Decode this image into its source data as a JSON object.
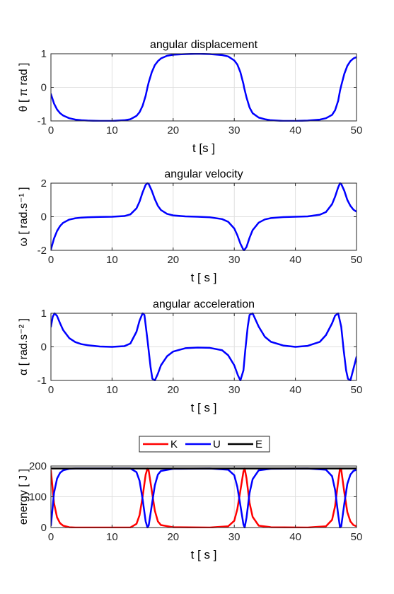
{
  "chart_data": [
    {
      "type": "line",
      "title": "angular displacement",
      "xlabel": "t   [s ]",
      "ylabel": "θ  [ π rad ]",
      "xlim": [
        0,
        50
      ],
      "ylim": [
        -1,
        1
      ],
      "xticks": [
        0,
        10,
        20,
        30,
        40,
        50
      ],
      "yticks": [
        -1,
        0,
        1
      ],
      "xtick_labels": [
        "0",
        "10",
        "20",
        "30",
        "40",
        "50"
      ],
      "ytick_labels": [
        "-1",
        "0",
        "1"
      ],
      "grid": true,
      "series": [
        {
          "color": "#0000ff",
          "x": [
            0,
            0.5,
            1,
            1.5,
            2,
            3,
            4,
            5,
            6,
            8,
            10,
            12,
            13,
            14,
            14.5,
            15,
            15.5,
            15.8,
            16,
            16.5,
            17,
            17.5,
            18,
            19,
            20,
            22,
            24,
            26,
            28,
            29,
            30,
            30.5,
            31,
            31.5,
            31.6,
            32,
            32.5,
            33,
            34,
            35,
            36,
            38,
            40,
            42,
            44,
            45,
            46,
            46.5,
            47,
            47.3,
            47.5,
            48,
            48.5,
            49,
            49.5,
            50
          ],
          "y": [
            -0.2,
            -0.48,
            -0.66,
            -0.77,
            -0.84,
            -0.92,
            -0.96,
            -0.98,
            -0.99,
            -1.0,
            -1.0,
            -0.98,
            -0.95,
            -0.85,
            -0.74,
            -0.55,
            -0.25,
            0.0,
            0.15,
            0.45,
            0.66,
            0.78,
            0.86,
            0.94,
            0.97,
            0.99,
            1.0,
            0.99,
            0.96,
            0.92,
            0.8,
            0.68,
            0.45,
            0.1,
            0.0,
            -0.3,
            -0.6,
            -0.77,
            -0.9,
            -0.95,
            -0.98,
            -1.0,
            -1.0,
            -0.99,
            -0.96,
            -0.92,
            -0.82,
            -0.68,
            -0.4,
            -0.1,
            0.05,
            0.4,
            0.64,
            0.78,
            0.86,
            0.9
          ]
        }
      ]
    },
    {
      "type": "line",
      "title": "angular velocity",
      "xlabel": "t  [ s ]",
      "ylabel": "ω  [ rad.s⁻¹ ]",
      "xlim": [
        0,
        50
      ],
      "ylim": [
        -2,
        2
      ],
      "xticks": [
        0,
        10,
        20,
        30,
        40,
        50
      ],
      "yticks": [
        -2,
        0,
        2
      ],
      "xtick_labels": [
        "0",
        "10",
        "20",
        "30",
        "40",
        "50"
      ],
      "ytick_labels": [
        "-2",
        "0",
        "2"
      ],
      "grid": true,
      "series": [
        {
          "color": "#0000ff",
          "x": [
            0,
            0.5,
            1,
            1.5,
            2,
            3,
            4,
            5,
            6,
            8,
            10,
            12,
            13,
            14,
            14.5,
            15,
            15.5,
            15.8,
            16,
            16.5,
            17,
            17.5,
            18,
            19,
            20,
            22,
            24,
            26,
            28,
            29,
            30,
            30.5,
            31,
            31.5,
            31.6,
            32,
            32.5,
            33,
            34,
            35,
            36,
            38,
            40,
            42,
            44,
            45,
            46,
            46.5,
            47,
            47.3,
            47.5,
            48,
            48.5,
            49,
            49.5,
            50
          ],
          "y": [
            -1.95,
            -1.3,
            -0.85,
            -0.55,
            -0.36,
            -0.17,
            -0.09,
            -0.05,
            -0.03,
            -0.01,
            0.0,
            0.04,
            0.14,
            0.5,
            0.9,
            1.45,
            1.9,
            2.0,
            1.95,
            1.55,
            1.05,
            0.65,
            0.4,
            0.17,
            0.08,
            0.02,
            0.0,
            -0.03,
            -0.14,
            -0.3,
            -0.7,
            -1.1,
            -1.6,
            -1.97,
            -2.0,
            -1.8,
            -1.25,
            -0.8,
            -0.35,
            -0.16,
            -0.08,
            -0.02,
            0.0,
            0.02,
            0.12,
            0.28,
            0.75,
            1.2,
            1.75,
            2.0,
            1.95,
            1.55,
            1.0,
            0.65,
            0.42,
            0.3
          ]
        }
      ]
    },
    {
      "type": "line",
      "title": "angular acceleration",
      "xlabel": "t  [ s ]",
      "ylabel": "α  [ rad.s⁻² ]",
      "xlim": [
        0,
        50
      ],
      "ylim": [
        -1,
        1
      ],
      "xticks": [
        0,
        10,
        20,
        30,
        40,
        50
      ],
      "yticks": [
        -1,
        0,
        1
      ],
      "xtick_labels": [
        "0",
        "10",
        "20",
        "30",
        "40",
        "50"
      ],
      "ytick_labels": [
        "-1",
        "0",
        "1"
      ],
      "grid": true,
      "series": [
        {
          "color": "#0000ff",
          "x": [
            0,
            0.3,
            0.6,
            1,
            1.5,
            2,
            3,
            4,
            5,
            6,
            8,
            10,
            12,
            13,
            14,
            14.5,
            15,
            15.3,
            15.8,
            16.3,
            16.6,
            17,
            17.5,
            18,
            19,
            20,
            22,
            24,
            26,
            28,
            29,
            30,
            30.6,
            31,
            31.5,
            31.8,
            32.2,
            32.5,
            33,
            34,
            35,
            36,
            38,
            40,
            42,
            44,
            45,
            46,
            46.5,
            47,
            47.5,
            47.9,
            48.3,
            48.6,
            49,
            49.5,
            50
          ],
          "y": [
            0.6,
            0.9,
            1.0,
            0.92,
            0.7,
            0.5,
            0.26,
            0.14,
            0.08,
            0.05,
            0.01,
            0.0,
            0.02,
            0.1,
            0.45,
            0.78,
            1.0,
            0.95,
            0.2,
            -0.6,
            -0.95,
            -1.0,
            -0.8,
            -0.55,
            -0.28,
            -0.14,
            -0.04,
            -0.02,
            -0.03,
            -0.1,
            -0.25,
            -0.55,
            -0.85,
            -1.0,
            -0.7,
            -0.1,
            0.6,
            0.95,
            1.0,
            0.6,
            0.3,
            0.15,
            0.04,
            0.0,
            0.03,
            0.15,
            0.35,
            0.7,
            0.93,
            1.0,
            0.6,
            -0.1,
            -0.7,
            -0.95,
            -1.0,
            -0.65,
            -0.3
          ]
        }
      ]
    },
    {
      "type": "line",
      "title": "",
      "xlabel": "t  [ s ]",
      "ylabel": "energy  [ J ]",
      "xlim": [
        0,
        50
      ],
      "ylim": [
        0,
        200
      ],
      "xticks": [
        0,
        10,
        20,
        30,
        40,
        50
      ],
      "yticks": [
        0,
        100,
        200
      ],
      "xtick_labels": [
        "0",
        "10",
        "20",
        "30",
        "40",
        "50"
      ],
      "ytick_labels": [
        "0",
        "100",
        "200"
      ],
      "grid": true,
      "legend": {
        "placement": "top-outside"
      },
      "series": [
        {
          "name": "K",
          "color": "#ff0000",
          "x": [
            0,
            0.5,
            1,
            1.5,
            2,
            3,
            4,
            6,
            10,
            13,
            14,
            14.5,
            15,
            15.5,
            15.8,
            16,
            16.5,
            17,
            17.5,
            18,
            20,
            26,
            29,
            30,
            30.5,
            31,
            31.5,
            31.7,
            32,
            32.5,
            33,
            34,
            36,
            42,
            45,
            46,
            46.5,
            47,
            47.3,
            47.5,
            48,
            48.5,
            49,
            49.5,
            50
          ],
          "y": [
            185,
            80,
            33,
            14,
            6,
            1,
            0,
            0,
            0,
            0,
            12,
            40,
            100,
            172,
            192,
            185,
            120,
            55,
            20,
            8,
            1,
            0,
            4,
            22,
            60,
            120,
            182,
            192,
            160,
            80,
            35,
            6,
            1,
            0,
            4,
            25,
            70,
            150,
            192,
            188,
            115,
            50,
            20,
            8,
            4
          ]
        },
        {
          "name": "U",
          "color": "#0000ff",
          "x": [
            0,
            0.5,
            1,
            1.5,
            2,
            3,
            4,
            6,
            10,
            13,
            14,
            14.5,
            15,
            15.5,
            15.8,
            16,
            16.5,
            17,
            17.5,
            18,
            20,
            26,
            29,
            30,
            30.5,
            31,
            31.5,
            31.7,
            32,
            32.5,
            33,
            34,
            36,
            42,
            45,
            46,
            46.5,
            47,
            47.3,
            47.5,
            48,
            48.5,
            49,
            49.5,
            50
          ],
          "y": [
            7,
            112,
            159,
            178,
            186,
            191,
            192,
            192,
            192,
            192,
            180,
            152,
            92,
            20,
            0,
            7,
            72,
            137,
            172,
            184,
            191,
            192,
            188,
            170,
            132,
            72,
            10,
            0,
            32,
            112,
            157,
            186,
            191,
            192,
            188,
            167,
            122,
            42,
            0,
            4,
            77,
            142,
            172,
            184,
            188
          ]
        },
        {
          "name": "E",
          "color": "#000000",
          "x": [
            0,
            50
          ],
          "y": [
            192,
            192
          ]
        }
      ]
    }
  ]
}
